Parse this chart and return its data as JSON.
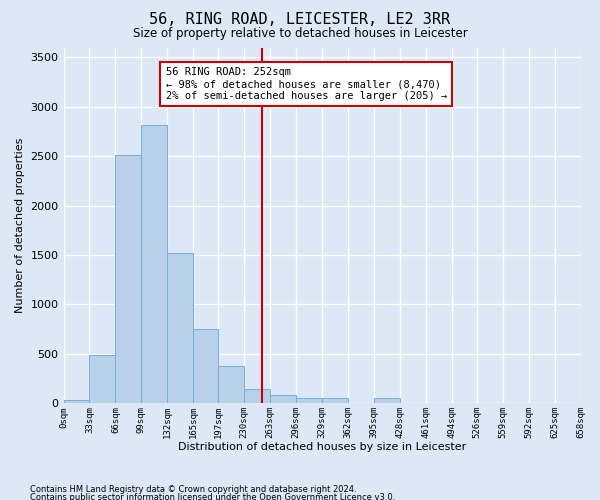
{
  "title": "56, RING ROAD, LEICESTER, LE2 3RR",
  "subtitle": "Size of property relative to detached houses in Leicester",
  "xlabel": "Distribution of detached houses by size in Leicester",
  "ylabel": "Number of detached properties",
  "bar_color": "#b8d0ea",
  "bar_edge_color": "#7aafd4",
  "background_color": "#dce8f5",
  "fig_background_color": "#dce8f5",
  "grid_color": "#ffffff",
  "bin_edges": [
    0,
    33,
    66,
    99,
    132,
    165,
    197,
    230,
    263,
    296,
    329,
    362,
    395,
    428,
    461,
    494,
    526,
    559,
    592,
    625,
    658
  ],
  "bar_heights": [
    30,
    490,
    2510,
    2820,
    1520,
    750,
    380,
    145,
    80,
    55,
    55,
    0,
    55,
    0,
    0,
    0,
    0,
    0,
    0,
    0
  ],
  "property_value": 252,
  "annotation_title": "56 RING ROAD: 252sqm",
  "annotation_line1": "← 98% of detached houses are smaller (8,470)",
  "annotation_line2": "2% of semi-detached houses are larger (205) →",
  "vline_color": "#cc0000",
  "annotation_box_color": "#ffffff",
  "annotation_box_edge": "#cc0000",
  "ylim": [
    0,
    3600
  ],
  "yticks": [
    0,
    500,
    1000,
    1500,
    2000,
    2500,
    3000,
    3500
  ],
  "footnote1": "Contains HM Land Registry data © Crown copyright and database right 2024.",
  "footnote2": "Contains public sector information licensed under the Open Government Licence v3.0."
}
